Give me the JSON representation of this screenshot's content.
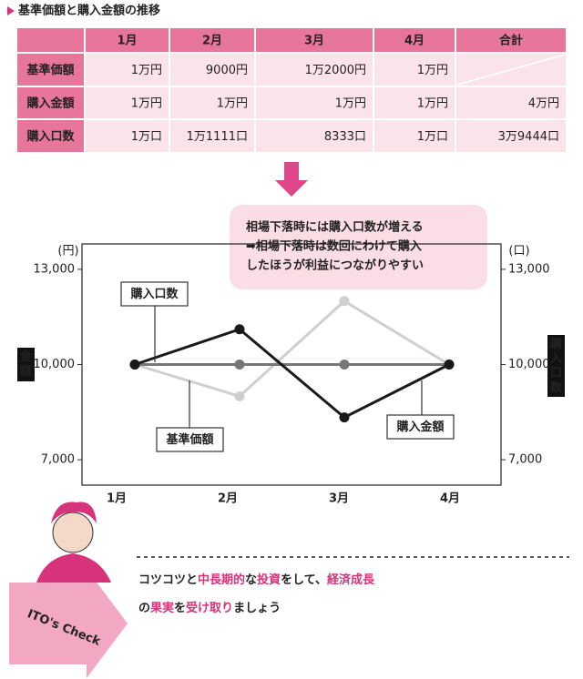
{
  "title": "基準価額と購入金額の推移",
  "table": {
    "columns": [
      "1月",
      "2月",
      "3月",
      "4月",
      "合計"
    ],
    "rows": [
      {
        "label": "基準価額",
        "cells": [
          "1万円",
          "9000円",
          "1万2000円",
          "1万円",
          null
        ]
      },
      {
        "label": "購入金額",
        "cells": [
          "1万円",
          "1万円",
          "1万円",
          "1万円",
          "4万円"
        ]
      },
      {
        "label": "購入口数",
        "cells": [
          "1万口",
          "1万1111口",
          "8333口",
          "1万口",
          "3万9444口"
        ]
      }
    ]
  },
  "callout": [
    "相場下落時には購入口数が増える",
    "➡相場下落時は数回にわけて購入",
    "したほうが利益につながりやすい"
  ],
  "chart_data": {
    "type": "line",
    "y_unit": "(円)",
    "y2_unit": "(口)",
    "y_label": "金額",
    "y2_label": "購入口数",
    "categories": [
      "1月",
      "2月",
      "3月",
      "4月"
    ],
    "ylim": [
      6200,
      13800
    ],
    "yticks": [
      {
        "value": 7000,
        "label": "7,000"
      },
      {
        "value": 10000,
        "label": "10,000"
      },
      {
        "value": 13000,
        "label": "13,000"
      }
    ],
    "y2lim": [
      6200,
      13800
    ],
    "y2ticks": [
      {
        "value": 7000,
        "label": "7,000"
      },
      {
        "value": 10000,
        "label": "10,000"
      },
      {
        "value": 13000,
        "label": "13,000"
      }
    ],
    "series": [
      {
        "name": "基準価額",
        "color": "#cfcfcf",
        "values": [
          10000,
          9000,
          12000,
          10000
        ]
      },
      {
        "name": "購入金額",
        "color": "#777777",
        "values": [
          10000,
          10000,
          10000,
          10000
        ]
      },
      {
        "name": "購入口数",
        "color": "#1a1a1a",
        "axis": "y2",
        "values": [
          10000,
          11111,
          8333,
          10000
        ]
      }
    ]
  },
  "footer": {
    "badge": "ITO's Check",
    "lines": [
      [
        {
          "text": "コツコツと",
          "color": "#222222"
        },
        {
          "text": "中長期的",
          "color": "#d6337a"
        },
        {
          "text": "な",
          "color": "#222222"
        },
        {
          "text": "投資",
          "color": "#d6337a"
        },
        {
          "text": "をして、",
          "color": "#222222"
        },
        {
          "text": "経済成長",
          "color": "#d6337a"
        }
      ],
      [
        {
          "text": "の",
          "color": "#222222"
        },
        {
          "text": "果実",
          "color": "#d6337a"
        },
        {
          "text": "を",
          "color": "#222222"
        },
        {
          "text": "受け取り",
          "color": "#d6337a"
        },
        {
          "text": "ましょう",
          "color": "#222222"
        }
      ]
    ]
  }
}
